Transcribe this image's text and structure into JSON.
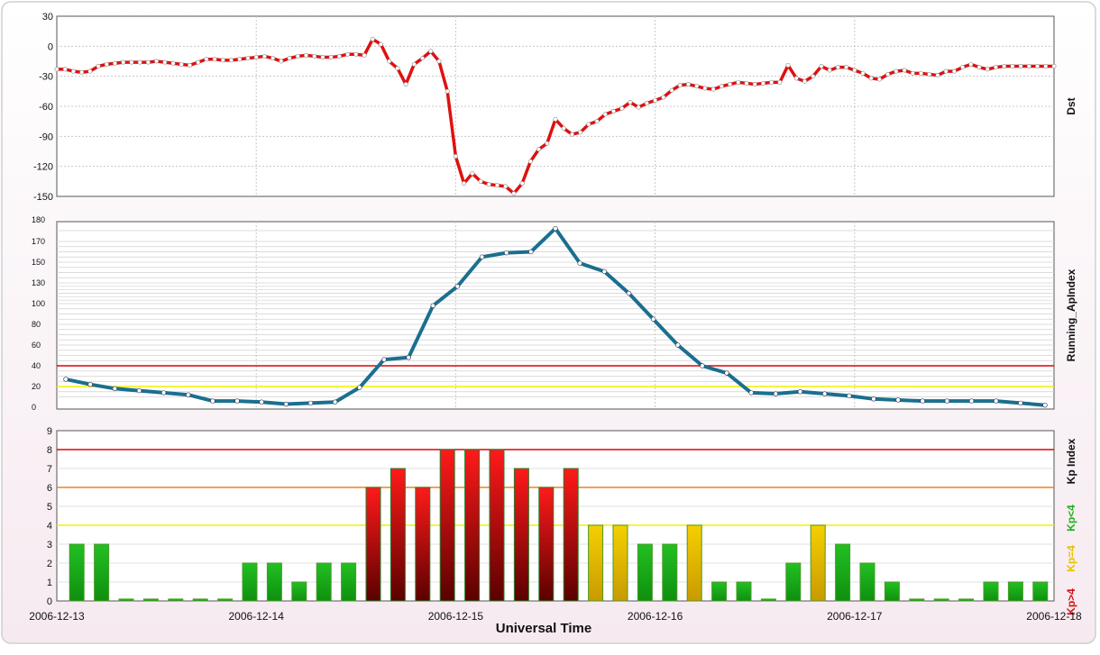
{
  "xlabel": "Universal Time",
  "x_ticks": [
    "2006-12-13",
    "2006-12-14",
    "2006-12-15",
    "2006-12-16",
    "2006-12-17",
    "2006-12-18"
  ],
  "colors": {
    "dst_line": "#e01010",
    "ap_line": "#1a6f8f",
    "kp_green": "#22b022",
    "kp_yellow": "#e8c000",
    "kp_red": "#d01010",
    "ref_red": "#e00000",
    "ref_orange": "#f08020",
    "ref_yellow": "#f0f000"
  },
  "chart_data": [
    {
      "type": "line",
      "ylabel": "Dst",
      "ylim": [
        -150,
        30
      ],
      "y_ticks": [
        30,
        0,
        -30,
        -60,
        -90,
        -120,
        -150
      ],
      "grid": true,
      "x_unit": "hours since 2006-12-13 00:00 UT",
      "x": [
        0,
        1,
        2,
        3,
        4,
        5,
        6,
        7,
        8,
        9,
        10,
        11,
        12,
        13,
        14,
        15,
        16,
        17,
        18,
        19,
        20,
        21,
        22,
        23,
        24,
        25,
        26,
        27,
        28,
        29,
        30,
        31,
        32,
        33,
        34,
        35,
        36,
        37,
        38,
        39,
        40,
        41,
        42,
        43,
        44,
        45,
        46,
        47,
        48,
        49,
        50,
        51,
        52,
        53,
        54,
        55,
        56,
        57,
        58,
        59,
        60,
        61,
        62,
        63,
        64,
        65,
        66,
        67,
        68,
        69,
        70,
        71,
        72,
        73,
        74,
        75,
        76,
        77,
        78,
        79,
        80,
        81,
        82,
        83,
        84,
        85,
        86,
        87,
        88,
        89,
        90,
        91,
        92,
        93,
        94,
        95,
        96,
        97,
        98,
        99,
        100,
        101,
        102,
        103,
        104,
        105,
        106,
        107,
        108,
        109,
        110,
        111,
        112,
        113,
        114,
        115,
        116,
        117,
        118,
        119,
        120
      ],
      "values": [
        -23,
        -23,
        -25,
        -26,
        -25,
        -20,
        -18,
        -17,
        -16,
        -16,
        -16,
        -16,
        -15,
        -16,
        -17,
        -18,
        -19,
        -16,
        -13,
        -13,
        -14,
        -14,
        -13,
        -12,
        -11,
        -10,
        -12,
        -15,
        -12,
        -10,
        -9,
        -10,
        -11,
        -11,
        -10,
        -8,
        -8,
        -9,
        7,
        2,
        -15,
        -22,
        -38,
        -18,
        -12,
        -5,
        -15,
        -45,
        -110,
        -137,
        -127,
        -135,
        -138,
        -139,
        -140,
        -147,
        -137,
        -115,
        -103,
        -97,
        -73,
        -82,
        -88,
        -86,
        -78,
        -75,
        -68,
        -65,
        -62,
        -56,
        -61,
        -57,
        -54,
        -51,
        -44,
        -39,
        -38,
        -40,
        -42,
        -43,
        -40,
        -38,
        -36,
        -37,
        -38,
        -37,
        -36,
        -36,
        -19,
        -32,
        -35,
        -30,
        -20,
        -24,
        -21,
        -21,
        -24,
        -27,
        -32,
        -33,
        -28,
        -25,
        -24,
        -27,
        -27,
        -28,
        -29,
        -25,
        -25,
        -21,
        -18,
        -21,
        -23,
        -21,
        -20,
        -20,
        -20,
        -20,
        -20,
        -20,
        -20
      ]
    },
    {
      "type": "line",
      "ylabel": "Running_ApIndex",
      "ylim": [
        0,
        180
      ],
      "y_ticks": [
        0,
        20,
        40,
        60,
        80,
        100,
        130,
        150,
        170
      ],
      "grid": true,
      "x_unit": "hours since 2006-12-13 00:00 UT",
      "x": [
        0,
        3,
        6,
        9,
        12,
        15,
        18,
        21,
        24,
        27,
        30,
        33,
        36,
        39,
        42,
        45,
        48,
        51,
        54,
        57,
        60,
        63,
        66,
        69,
        72,
        75,
        78,
        81,
        84,
        87,
        90,
        93,
        96,
        99,
        102,
        105,
        108,
        111,
        114,
        117,
        120
      ],
      "values": [
        27,
        22,
        18,
        16,
        14,
        12,
        6,
        6,
        5,
        3,
        4,
        5,
        19,
        46,
        48,
        98,
        125,
        155,
        159,
        160,
        176,
        149,
        141,
        115,
        85,
        60,
        40,
        33,
        14,
        13,
        15,
        13,
        11,
        8,
        7,
        6,
        6,
        6,
        6,
        4,
        2
      ],
      "reference_lines": [
        40,
        20
      ]
    },
    {
      "type": "bar",
      "ylabel": "Kp Index",
      "ylim": [
        0,
        9
      ],
      "y_ticks": [
        0,
        1,
        2,
        3,
        4,
        5,
        6,
        7,
        8,
        9
      ],
      "grid": true,
      "x_unit": "3-hour intervals starting 2006-12-13 00:00 UT",
      "values": [
        3,
        3,
        0.1,
        0.1,
        0.1,
        0.1,
        0.1,
        2,
        2,
        1,
        2,
        2,
        6,
        7,
        6,
        8,
        8,
        8,
        7,
        6,
        7,
        4,
        4,
        3,
        3,
        4,
        1,
        1,
        0.1,
        2,
        4,
        3,
        2,
        1,
        0.1,
        0.1,
        0.1,
        1,
        1,
        1
      ],
      "reference_lines": [
        8,
        6,
        4
      ],
      "legend": [
        "Kp<4",
        "Kp=4",
        "Kp>4"
      ]
    }
  ]
}
